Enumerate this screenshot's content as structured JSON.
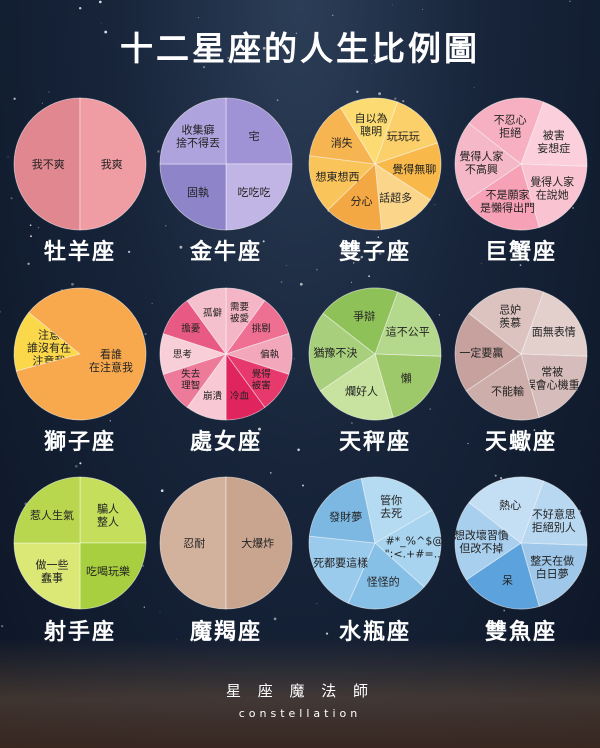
{
  "title": "十二星座的人生比例圖",
  "footer": {
    "brand_cn": "星 座 魔 法 師",
    "brand_en": "constellation"
  },
  "chart_data": [
    {
      "type": "pie",
      "name": "牡羊座",
      "labels": [
        "我不爽",
        "我爽"
      ],
      "values": [
        50,
        50
      ],
      "colors": [
        "#e1878f",
        "#f09ca3"
      ]
    },
    {
      "type": "pie",
      "name": "金牛座",
      "labels": [
        "宅",
        "吃吃吃",
        "固執",
        "收集癖\n捨不得丟"
      ],
      "values": [
        25,
        25,
        25,
        25
      ],
      "colors": [
        "#9f93d6",
        "#c1b5e6",
        "#8e84c9",
        "#aea3dd"
      ]
    },
    {
      "type": "pie",
      "name": "雙子座",
      "labels": [
        "玩玩玩",
        "覺得無聊",
        "話超多",
        "分心",
        "想東想西",
        "消失",
        "自以為\n聰明"
      ],
      "values": [
        1,
        1,
        1,
        1,
        1,
        1,
        1
      ],
      "colors": [
        "#fbd06a",
        "#f8b84a",
        "#fbd68a",
        "#f4a843",
        "#f9c45a",
        "#f7b552",
        "#fcdc72"
      ]
    },
    {
      "type": "pie",
      "name": "巨蟹座",
      "labels": [
        "被害\n妄想症",
        "覺得人家\n在說她",
        "不是願家\n是懶得出門",
        "覺得人家\n不高興",
        "不忍心\n拒絕"
      ],
      "values": [
        1,
        1,
        1,
        1,
        1
      ],
      "colors": [
        "#fbd0dc",
        "#f9c3d2",
        "#f6a1b6",
        "#f4b8c8",
        "#f7b0c2"
      ]
    },
    {
      "type": "pie",
      "name": "獅子座",
      "labels": [
        "注意\n誰沒有在\n注意我",
        "看誰\n在注意我"
      ],
      "values": [
        15,
        85
      ],
      "colors": [
        "#fbd74a",
        "#f9a94d"
      ]
    },
    {
      "type": "pie",
      "name": "處女座",
      "labels": [
        "需要\n被愛",
        "挑剔",
        "偏執",
        "覺得\n被害",
        "冷血",
        "崩潰",
        "失去\n理智",
        "思考",
        "擔憂",
        "孤僻"
      ],
      "values": [
        1,
        1,
        1,
        1,
        1,
        1,
        1,
        1,
        1,
        1
      ],
      "colors": [
        "#f4b6c6",
        "#ee6f92",
        "#f2a7bb",
        "#e8396c",
        "#e0245e",
        "#f8c8d4",
        "#ee7a9a",
        "#f8cfd9",
        "#e85a84",
        "#f5c0cd"
      ]
    },
    {
      "type": "pie",
      "name": "天秤座",
      "labels": [
        "這不公平",
        "懶",
        "爛好人",
        "猶豫不決",
        "爭辯"
      ],
      "values": [
        1,
        1,
        1,
        1,
        1
      ],
      "colors": [
        "#b4d88c",
        "#9ec96a",
        "#c7e39f",
        "#a8d07c",
        "#8fc159"
      ]
    },
    {
      "type": "pie",
      "name": "天蠍座",
      "labels": [
        "面無表情",
        "常被\n誤會心機重",
        "不能輸",
        "一定要贏",
        "忌妒\n羨慕"
      ],
      "values": [
        1,
        1,
        1,
        1,
        1
      ],
      "colors": [
        "#e3d0cd",
        "#d6bcba",
        "#ceaeab",
        "#c6a19e",
        "#dcc3c0"
      ]
    },
    {
      "type": "pie",
      "name": "射手座",
      "labels": [
        "騙人\n整人",
        "吃喝玩樂",
        "做一些\n蠢事",
        "惹人生氣"
      ],
      "values": [
        25,
        25,
        25,
        25
      ],
      "colors": [
        "#c5df5d",
        "#a8cf3f",
        "#dbe876",
        "#b8d64e"
      ]
    },
    {
      "type": "pie",
      "name": "魔羯座",
      "labels": [
        "忍耐",
        "大爆炸"
      ],
      "values": [
        50,
        50
      ],
      "colors": [
        "#d2b19d",
        "#c9a58f"
      ]
    },
    {
      "type": "pie",
      "name": "水瓶座",
      "labels": [
        "#*_%^$@\n\";<.+#=...",
        "怪怪的",
        "死都要這樣",
        "發財夢",
        "管你\n去死"
      ],
      "values": [
        1,
        1,
        1,
        1,
        1
      ],
      "colors": [
        "#a8d4ef",
        "#86c0e7",
        "#9bcbec",
        "#7db8e3",
        "#b4dbf2"
      ]
    },
    {
      "type": "pie",
      "name": "雙魚座",
      "labels": [
        "不好意思\n拒絕別人",
        "整天在做\n白日夢",
        "呆",
        "想改壞習慣\n但改不掉",
        "熱心"
      ],
      "values": [
        1,
        1,
        1,
        1,
        1
      ],
      "colors": [
        "#b8d8f1",
        "#9ec7ea",
        "#5ca2dc",
        "#a9cfee",
        "#c4def4"
      ]
    }
  ]
}
